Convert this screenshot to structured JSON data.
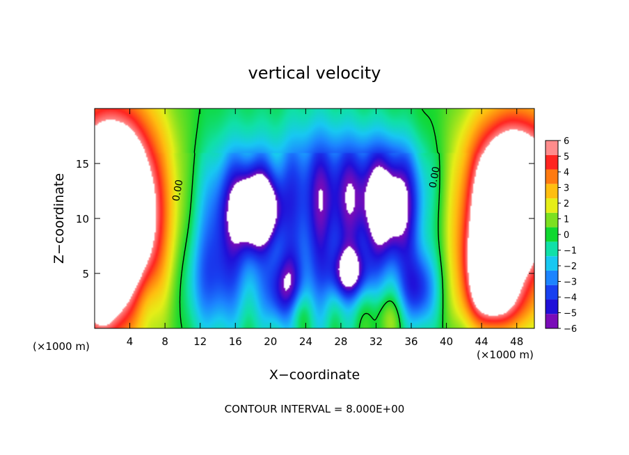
{
  "chart_data": {
    "type": "heatmap",
    "title": "vertical velocity",
    "xlabel": "X−coordinate",
    "ylabel": "Z−coordinate",
    "x_unit_left": "(×1000 m)",
    "x_unit_right": "(×1000 m)",
    "footer": "CONTOUR INTERVAL = 8.000E+00",
    "xlim": [
      0,
      50
    ],
    "ylim": [
      0,
      20
    ],
    "x_ticks": [
      4,
      8,
      12,
      16,
      20,
      24,
      28,
      32,
      36,
      40,
      44,
      48
    ],
    "x_tick_labels": [
      "4",
      "8",
      "12",
      "16",
      "20",
      "24",
      "28",
      "32",
      "36",
      "40",
      "44",
      "48"
    ],
    "y_ticks": [
      5,
      10,
      15
    ],
    "y_tick_labels": [
      "5",
      "10",
      "15"
    ],
    "colorbar": {
      "min": -6,
      "max": 6,
      "ticks": [
        6,
        5,
        4,
        3,
        2,
        1,
        0,
        -1,
        -2,
        -3,
        -4,
        -5,
        -6
      ],
      "tick_labels": [
        "6",
        "5",
        "4",
        "3",
        "2",
        "1",
        "0",
        "−1",
        "−2",
        "−3",
        "−4",
        "−5",
        "−6"
      ],
      "colors": [
        "#7a0cb8",
        "#2010d8",
        "#1840f0",
        "#1c84ff",
        "#18c8f2",
        "#10e0a8",
        "#10d830",
        "#7ce020",
        "#e6ee18",
        "#ffbe10",
        "#ff7a10",
        "#ff2420",
        "#ff8c8c"
      ]
    },
    "contour_labels": [
      {
        "text": "0.00",
        "x": 9.8,
        "z": 12.5
      },
      {
        "text": "0.00",
        "x": 39.0,
        "z": 13.7
      }
    ],
    "features": [
      {
        "x": 2.5,
        "z": 9.0,
        "sx": 4.0,
        "sz": 7.0,
        "v": 9
      },
      {
        "x": 1.0,
        "z": 14.0,
        "sx": 4.5,
        "sz": 6.0,
        "v": 4
      },
      {
        "x": 0.5,
        "z": 3.0,
        "sx": 1.5,
        "sz": 3.0,
        "v": 3
      },
      {
        "x": 47.0,
        "z": 10.0,
        "sx": 3.5,
        "sz": 5.5,
        "v": 9
      },
      {
        "x": 44.5,
        "z": 5.0,
        "sx": 2.0,
        "sz": 3.0,
        "v": 5
      },
      {
        "x": 49.0,
        "z": 14.5,
        "sx": 5.0,
        "sz": 5.0,
        "v": 4
      },
      {
        "x": 46.0,
        "z": 2.0,
        "sx": 3.0,
        "sz": 1.8,
        "v": 2
      },
      {
        "x": 6.0,
        "z": 2.0,
        "sx": 1.2,
        "sz": 2.5,
        "v": -1.2
      },
      {
        "x": 13.0,
        "z": 4.0,
        "sx": 2.5,
        "sz": 3.5,
        "v": -2.5
      },
      {
        "x": 15.5,
        "z": 9.0,
        "sx": 3.0,
        "sz": 5.0,
        "v": -3.5
      },
      {
        "x": 18.0,
        "z": 11.0,
        "sx": 2.0,
        "sz": 2.5,
        "v": -5
      },
      {
        "x": 19.0,
        "z": 10.5,
        "sx": 1.5,
        "sz": 2.0,
        "v": -4
      },
      {
        "x": 21.5,
        "z": 3.5,
        "sx": 1.5,
        "sz": 2.5,
        "v": -5
      },
      {
        "x": 25.0,
        "z": 9.0,
        "sx": 2.5,
        "sz": 6.0,
        "v": -3.2
      },
      {
        "x": 29.0,
        "z": 5.0,
        "sx": 1.5,
        "sz": 1.6,
        "v": -5
      },
      {
        "x": 30.5,
        "z": 10.5,
        "sx": 3.5,
        "sz": 4.5,
        "v": -3.5
      },
      {
        "x": 34.0,
        "z": 10.5,
        "sx": 2.2,
        "sz": 3.5,
        "v": -5
      },
      {
        "x": 36.8,
        "z": 3.5,
        "sx": 1.5,
        "sz": 2.5,
        "v": -4.5
      },
      {
        "x": 22.0,
        "z": 14.0,
        "sx": 6.0,
        "sz": 3.5,
        "v": -1.5
      },
      {
        "x": 33.0,
        "z": 14.0,
        "sx": 5.0,
        "sz": 3.0,
        "v": -1.5
      },
      {
        "x": 23.0,
        "z": 1.5,
        "sx": 1.0,
        "sz": 1.5,
        "v": 2
      },
      {
        "x": 33.5,
        "z": 1.0,
        "sx": 1.5,
        "sz": 1.5,
        "v": 1.5
      }
    ]
  }
}
